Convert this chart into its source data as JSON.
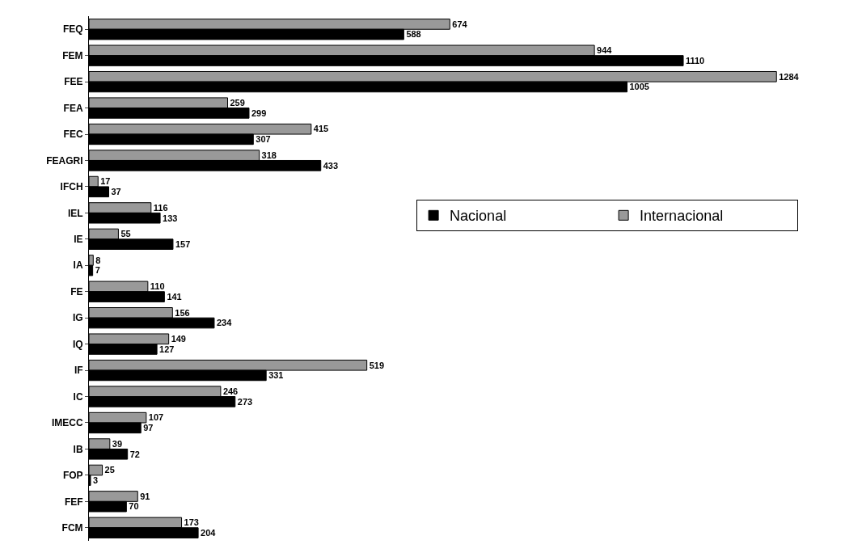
{
  "chart_data": {
    "type": "bar",
    "orientation": "horizontal",
    "data_labels": true,
    "legend": "right",
    "categories": [
      "FEQ",
      "FEM",
      "FEE",
      "FEA",
      "FEC",
      "FEAGRI",
      "IFCH",
      "IEL",
      "IE",
      "IA",
      "FE",
      "IG",
      "IQ",
      "IF",
      "IC",
      "IMECC",
      "IB",
      "FOP",
      "FEF",
      "FCM"
    ],
    "series": [
      {
        "name": "Internacional",
        "color": "#999999",
        "values": [
          674,
          944,
          1284,
          259,
          415,
          318,
          17,
          116,
          55,
          8,
          110,
          156,
          149,
          519,
          246,
          107,
          39,
          25,
          91,
          173
        ]
      },
      {
        "name": "Nacional",
        "color": "#000000",
        "values": [
          588,
          1110,
          1005,
          299,
          307,
          433,
          37,
          133,
          157,
          7,
          141,
          234,
          127,
          331,
          273,
          97,
          72,
          3,
          70,
          204
        ]
      }
    ]
  }
}
